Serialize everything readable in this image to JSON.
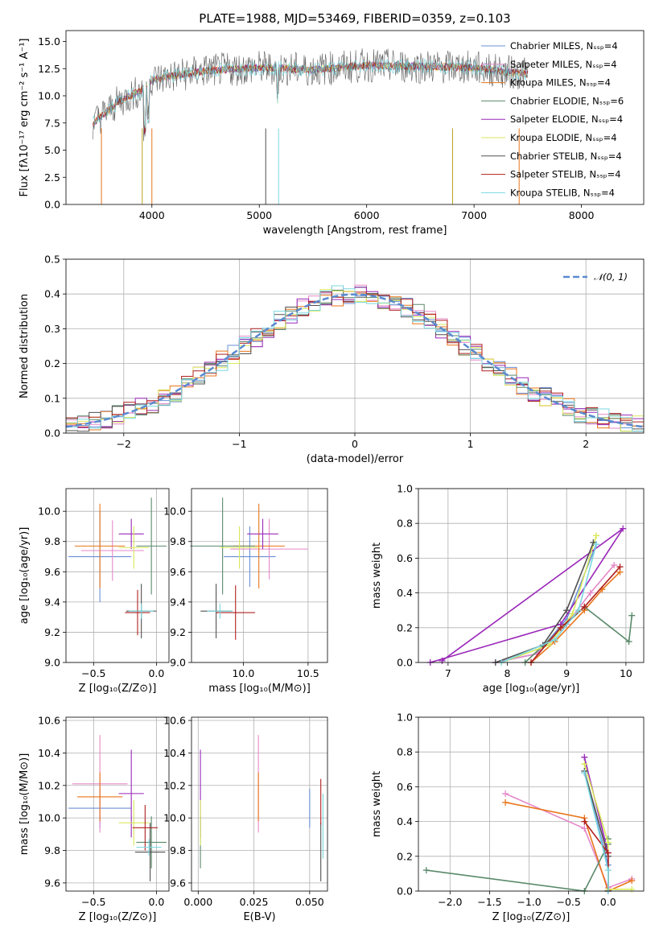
{
  "chart_data": [
    {
      "type": "line",
      "title": "PLATE=1988, MJD=53469, FIBERID=0359, z=0.103",
      "xlabel": "wavelength [Angstrom, rest frame]",
      "ylabel": "Flux [fλ10⁻¹⁷ erg cm⁻² s⁻¹ A⁻¹]",
      "xlim": [
        3200,
        8580
      ],
      "ylim": [
        0,
        16
      ],
      "xticks": [
        "4000",
        "5000",
        "6000",
        "7000",
        "8000"
      ],
      "yticks": [
        "0.0",
        "2.5",
        "5.0",
        "7.5",
        "10.0",
        "12.5",
        "15.0"
      ],
      "legend_position": "upper right",
      "series": [
        {
          "name": "Chabrier MILES, Nₛₛₚ=4",
          "color": "#6a8fd8"
        },
        {
          "name": "Salpeter MILES, Nₛₛₚ=4",
          "color": "#e587c8"
        },
        {
          "name": "Kroupa MILES, Nₛₛₚ=4",
          "color": "#e8751a"
        },
        {
          "name": "Chabrier ELODIE, Nₛₛₚ=6",
          "color": "#5a8a6a"
        },
        {
          "name": "Salpeter ELODIE, Nₛₛₚ=4",
          "color": "#9a28b8"
        },
        {
          "name": "Kroupa ELODIE, Nₛₛₚ=4",
          "color": "#d8e85a"
        },
        {
          "name": "Chabrier STELIB, Nₛₛₚ=4",
          "color": "#505050"
        },
        {
          "name": "Salpeter STELIB, Nₛₛₚ=4",
          "color": "#b02020"
        },
        {
          "name": "Kroupa STELIB, Nₛₛₚ=4",
          "color": "#7ad8e0"
        }
      ],
      "data_shape": [
        [
          3450,
          7.5
        ],
        [
          3700,
          9.5
        ],
        [
          3900,
          10.5
        ],
        [
          4000,
          11.5
        ],
        [
          4500,
          12.3
        ],
        [
          5000,
          12.6
        ],
        [
          5500,
          12.4
        ],
        [
          6000,
          12.8
        ],
        [
          6500,
          12.7
        ],
        [
          7000,
          12.6
        ],
        [
          7300,
          12.2
        ],
        [
          7500,
          12.0
        ]
      ]
    },
    {
      "type": "line",
      "xlabel": "(data-model)/error",
      "ylabel": "Normed distribution",
      "xlim": [
        -2.5,
        2.5
      ],
      "ylim": [
        0,
        0.5
      ],
      "xticks": [
        "−2",
        "−1",
        "0",
        "1",
        "2"
      ],
      "yticks": [
        "0.0",
        "0.1",
        "0.2",
        "0.3",
        "0.4",
        "0.5"
      ],
      "legend": "𝒩(0, 1)",
      "model": "gaussian mean 0 sigma 1",
      "hist_bins": [
        -2.5,
        -2.4,
        -2.3,
        -2.2,
        -2.1,
        -2.0,
        -1.9,
        -1.8,
        -1.7,
        -1.6,
        -1.5,
        -1.4,
        -1.3,
        -1.2,
        -1.1,
        -1.0,
        -0.9,
        -0.8,
        -0.7,
        -0.6,
        -0.5,
        -0.4,
        -0.3,
        -0.2,
        -0.1,
        0.0,
        0.1,
        0.2,
        0.3,
        0.4,
        0.5,
        0.6,
        0.7,
        0.8,
        0.9,
        1.0,
        1.1,
        1.2,
        1.3,
        1.4,
        1.5,
        1.6,
        1.7,
        1.8,
        1.9,
        2.0,
        2.1,
        2.2,
        2.3,
        2.4,
        2.5
      ]
    },
    {
      "type": "scatter",
      "xlabel": "Z [log₁₀(Z/Z⊙)]",
      "ylabel": "age  [log₁₀(age/yr)]",
      "xlim": [
        -0.72,
        0.1
      ],
      "ylim": [
        9.0,
        10.15
      ],
      "xticks": [
        "−0.5",
        "0.0"
      ],
      "yticks": [
        "9.0",
        "9.2",
        "9.4",
        "9.6",
        "9.8",
        "10.0"
      ],
      "points": [
        {
          "c": "#6a8fd8",
          "x": -0.45,
          "y": 9.7,
          "xe": 0.25,
          "ye": 0.3
        },
        {
          "c": "#e587c8",
          "x": -0.35,
          "y": 9.74,
          "xe": 0.25,
          "ye": 0.2
        },
        {
          "c": "#e8751a",
          "x": -0.45,
          "y": 9.77,
          "xe": 0.2,
          "ye": 0.28
        },
        {
          "c": "#5a8a6a",
          "x": -0.04,
          "y": 9.77,
          "xe": 0.12,
          "ye": 0.32
        },
        {
          "c": "#9a28b8",
          "x": -0.2,
          "y": 9.85,
          "xe": 0.1,
          "ye": 0.1
        },
        {
          "c": "#d8e85a",
          "x": -0.18,
          "y": 9.76,
          "xe": 0.12,
          "ye": 0.14
        },
        {
          "c": "#505050",
          "x": -0.12,
          "y": 9.34,
          "xe": 0.12,
          "ye": 0.18
        },
        {
          "c": "#b02020",
          "x": -0.15,
          "y": 9.33,
          "xe": 0.1,
          "ye": 0.15
        },
        {
          "c": "#7ad8e0",
          "x": -0.12,
          "y": 9.34,
          "xe": 0.1,
          "ye": 0.05
        }
      ]
    },
    {
      "type": "scatter",
      "xlabel": "mass [log₁₀(M/M⊙)]",
      "xlim": [
        9.6,
        10.65
      ],
      "ylim": [
        9.0,
        10.15
      ],
      "xticks": [
        "10.0",
        "10.5"
      ],
      "yticks": [
        "9.0",
        "9.2",
        "9.4",
        "9.6",
        "9.8",
        "10.0"
      ],
      "points": [
        {
          "c": "#6a8fd8",
          "x": 10.05,
          "y": 9.7,
          "xe": 0.2,
          "ye": 0.2
        },
        {
          "c": "#e587c8",
          "x": 10.2,
          "y": 9.75,
          "xe": 0.3,
          "ye": 0.2
        },
        {
          "c": "#e8751a",
          "x": 10.12,
          "y": 9.77,
          "xe": 0.2,
          "ye": 0.28
        },
        {
          "c": "#5a8a6a",
          "x": 9.84,
          "y": 9.77,
          "xe": 0.25,
          "ye": 0.32
        },
        {
          "c": "#9a28b8",
          "x": 10.15,
          "y": 9.85,
          "xe": 0.12,
          "ye": 0.1
        },
        {
          "c": "#d8e85a",
          "x": 9.97,
          "y": 9.76,
          "xe": 0.15,
          "ye": 0.14
        },
        {
          "c": "#505050",
          "x": 9.79,
          "y": 9.34,
          "xe": 0.12,
          "ye": 0.18
        },
        {
          "c": "#b02020",
          "x": 9.94,
          "y": 9.33,
          "xe": 0.15,
          "ye": 0.18
        },
        {
          "c": "#7ad8e0",
          "x": 9.82,
          "y": 9.34,
          "xe": 0.1,
          "ye": 0.05
        }
      ]
    },
    {
      "type": "line",
      "xlabel": "age  [log₁₀(age/yr)]",
      "ylabel": "mass weight",
      "xlim": [
        6.5,
        10.3
      ],
      "ylim": [
        0,
        1.0
      ],
      "xticks": [
        "7",
        "8",
        "9",
        "10"
      ],
      "yticks": [
        "0.0",
        "0.2",
        "0.4",
        "0.6",
        "0.8",
        "1.0"
      ],
      "series": [
        {
          "c": "#6a8fd8",
          "pts": [
            [
              7.8,
              0
            ],
            [
              8.5,
              0.05
            ],
            [
              9.0,
              0.25
            ],
            [
              9.5,
              0.68
            ]
          ]
        },
        {
          "c": "#e587c8",
          "pts": [
            [
              7.8,
              0
            ],
            [
              8.5,
              0.05
            ],
            [
              9.0,
              0.22
            ],
            [
              9.4,
              0.4
            ],
            [
              9.8,
              0.56
            ]
          ]
        },
        {
          "c": "#e8751a",
          "pts": [
            [
              8.4,
              0
            ],
            [
              8.8,
              0.12
            ],
            [
              9.3,
              0.3
            ],
            [
              9.6,
              0.42
            ],
            [
              9.9,
              0.52
            ]
          ]
        },
        {
          "c": "#5a8a6a",
          "pts": [
            [
              8.3,
              0
            ],
            [
              9.3,
              0.32
            ],
            [
              10.05,
              0.12
            ],
            [
              10.1,
              0.27
            ]
          ]
        },
        {
          "c": "#9a28b8",
          "pts": [
            [
              6.7,
              0
            ],
            [
              8.9,
              0.22
            ],
            [
              9.95,
              0.77
            ],
            [
              6.9,
              0.01
            ]
          ]
        },
        {
          "c": "#d8e85a",
          "pts": [
            [
              7.9,
              0
            ],
            [
              8.7,
              0.1
            ],
            [
              9.1,
              0.28
            ],
            [
              9.5,
              0.73
            ]
          ]
        },
        {
          "c": "#505050",
          "pts": [
            [
              7.8,
              0
            ],
            [
              8.6,
              0.1
            ],
            [
              9.0,
              0.3
            ],
            [
              9.45,
              0.69
            ]
          ]
        },
        {
          "c": "#b02020",
          "pts": [
            [
              8.4,
              0
            ],
            [
              8.9,
              0.2
            ],
            [
              9.3,
              0.32
            ],
            [
              9.9,
              0.55
            ]
          ]
        },
        {
          "c": "#7ad8e0",
          "pts": [
            [
              7.9,
              0
            ],
            [
              8.8,
              0.13
            ],
            [
              9.2,
              0.3
            ],
            [
              9.5,
              0.68
            ]
          ]
        }
      ]
    },
    {
      "type": "scatter",
      "xlabel": "Z [log₁₀(Z/Z⊙)]",
      "ylabel": "mass [log₁₀(M/M⊙)]",
      "xlim": [
        -0.72,
        0.1
      ],
      "ylim": [
        9.55,
        10.62
      ],
      "xticks": [
        "−0.5",
        "0.0"
      ],
      "yticks": [
        "9.6",
        "9.8",
        "10.0",
        "10.2",
        "10.4",
        "10.6"
      ],
      "points": [
        {
          "c": "#6a8fd8",
          "x": -0.45,
          "y": 10.06,
          "xe": 0.25,
          "ye": 0.12
        },
        {
          "c": "#e587c8",
          "x": -0.45,
          "y": 10.21,
          "xe": 0.22,
          "ye": 0.3
        },
        {
          "c": "#e8751a",
          "x": -0.45,
          "y": 10.13,
          "xe": 0.18,
          "ye": 0.15
        },
        {
          "c": "#5a8a6a",
          "x": -0.04,
          "y": 9.85,
          "xe": 0.12,
          "ye": 0.16
        },
        {
          "c": "#9a28b8",
          "x": -0.2,
          "y": 10.15,
          "xe": 0.1,
          "ye": 0.27
        },
        {
          "c": "#d8e85a",
          "x": -0.18,
          "y": 9.97,
          "xe": 0.12,
          "ye": 0.14
        },
        {
          "c": "#505050",
          "x": -0.05,
          "y": 9.79,
          "xe": 0.12,
          "ye": 0.18
        },
        {
          "c": "#b02020",
          "x": -0.09,
          "y": 9.94,
          "xe": 0.1,
          "ye": 0.14
        },
        {
          "c": "#7ad8e0",
          "x": -0.06,
          "y": 9.82,
          "xe": 0.1,
          "ye": 0.05
        }
      ]
    },
    {
      "type": "scatter",
      "xlabel": "E(B-V)",
      "xlim": [
        -0.003,
        0.058
      ],
      "ylim": [
        9.55,
        10.62
      ],
      "xticks": [
        "0.000",
        "0.025",
        "0.050"
      ],
      "yticks": [
        "9.6",
        "9.8",
        "10.0",
        "10.2",
        "10.4",
        "10.6"
      ],
      "points": [
        {
          "c": "#6a8fd8",
          "x": 0.05,
          "y": 10.06,
          "xe": 0,
          "ye": 0.12
        },
        {
          "c": "#e587c8",
          "x": 0.027,
          "y": 10.21,
          "xe": 0,
          "ye": 0.3
        },
        {
          "c": "#e8751a",
          "x": 0.027,
          "y": 10.13,
          "xe": 0,
          "ye": 0.15
        },
        {
          "c": "#5a8a6a",
          "x": 0.001,
          "y": 9.85,
          "xe": 0,
          "ye": 0.16
        },
        {
          "c": "#9a28b8",
          "x": 0.001,
          "y": 10.15,
          "xe": 0,
          "ye": 0.27
        },
        {
          "c": "#d8e85a",
          "x": 0.001,
          "y": 9.97,
          "xe": 0,
          "ye": 0.14
        },
        {
          "c": "#505050",
          "x": 0.055,
          "y": 9.79,
          "xe": 0,
          "ye": 0.18
        },
        {
          "c": "#b02020",
          "x": 0.055,
          "y": 10.1,
          "xe": 0,
          "ye": 0.14
        },
        {
          "c": "#7ad8e0",
          "x": 0.056,
          "y": 9.95,
          "xe": 0,
          "ye": 0.2
        }
      ]
    },
    {
      "type": "line",
      "xlabel": "Z [log₁₀(Z/Z⊙)]",
      "ylabel": "mass weight",
      "xlim": [
        -2.4,
        0.45
      ],
      "ylim": [
        0,
        1.0
      ],
      "xticks": [
        "−2.0",
        "−1.5",
        "−1.0",
        "−0.5",
        "0.0"
      ],
      "yticks": [
        "0.0",
        "0.2",
        "0.4",
        "0.6",
        "0.8",
        "1.0"
      ],
      "series": [
        {
          "c": "#6a8fd8",
          "pts": [
            [
              -0.3,
              0.68
            ],
            [
              0.0,
              0.15
            ],
            [
              0.0,
              0
            ]
          ]
        },
        {
          "c": "#e587c8",
          "pts": [
            [
              -1.3,
              0.56
            ],
            [
              -0.3,
              0.36
            ],
            [
              0.0,
              0.02
            ],
            [
              0.3,
              0.07
            ]
          ]
        },
        {
          "c": "#e8751a",
          "pts": [
            [
              -1.3,
              0.51
            ],
            [
              -0.3,
              0.42
            ],
            [
              0.0,
              0.0
            ],
            [
              0.3,
              0.06
            ]
          ]
        },
        {
          "c": "#5a8a6a",
          "pts": [
            [
              -2.3,
              0.12
            ],
            [
              -0.3,
              0.0
            ],
            [
              0.0,
              0.27
            ],
            [
              0.0,
              0.3
            ]
          ]
        },
        {
          "c": "#9a28b8",
          "pts": [
            [
              -0.3,
              0.77
            ],
            [
              0.0,
              0.22
            ],
            [
              0.0,
              0
            ]
          ]
        },
        {
          "c": "#d8e85a",
          "pts": [
            [
              -0.3,
              0.73
            ],
            [
              0.0,
              0.28
            ],
            [
              0.0,
              0.01
            ],
            [
              0.3,
              0.01
            ]
          ]
        },
        {
          "c": "#505050",
          "pts": [
            [
              -0.3,
              0.69
            ],
            [
              0.0,
              0.2
            ],
            [
              0.0,
              0
            ]
          ]
        },
        {
          "c": "#b02020",
          "pts": [
            [
              -0.3,
              0.4
            ],
            [
              0.0,
              0.22
            ],
            [
              0.0,
              0
            ]
          ]
        },
        {
          "c": "#7ad8e0",
          "pts": [
            [
              -0.3,
              0.68
            ],
            [
              0.0,
              0.12
            ],
            [
              0.0,
              0
            ]
          ]
        }
      ]
    }
  ]
}
